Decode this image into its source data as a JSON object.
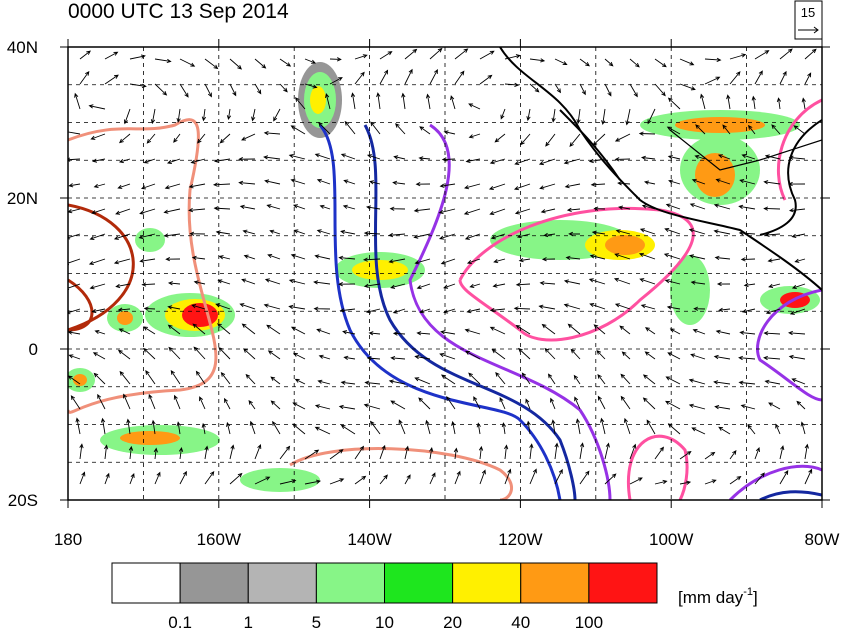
{
  "title": "0000 UTC 13 Sep 2014",
  "reference_vector": "15",
  "map": {
    "lat_labels": [
      "40N",
      "20N",
      "0",
      "20S"
    ],
    "lon_labels": [
      "180",
      "160W",
      "140W",
      "120W",
      "100W",
      "80W"
    ]
  },
  "colorbar": {
    "colors": [
      "#ffffff",
      "#969696",
      "#b4b4b4",
      "#87f587",
      "#1ee61e",
      "#fff000",
      "#ff9a14",
      "#ff1414"
    ],
    "levels": [
      "0.1",
      "1",
      "5",
      "10",
      "20",
      "40",
      "100"
    ],
    "units": "[mm day",
    "units_exponent": "-1",
    "units_close": "]"
  }
}
